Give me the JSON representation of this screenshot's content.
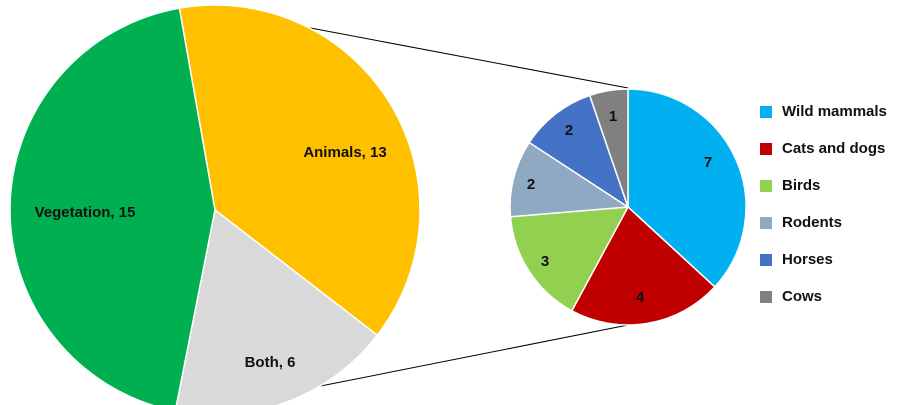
{
  "chart_data": [
    {
      "type": "pie",
      "slices": [
        {
          "label": "Animals",
          "value": 13,
          "color": "#FFC000"
        },
        {
          "label": "Both",
          "value": 6,
          "color": "#D9D9D9"
        },
        {
          "label": "Vegetation",
          "value": 15,
          "color": "#00B050"
        }
      ],
      "data_labels": [
        "Animals, 13",
        "Both, 6",
        "Vegetation, 15"
      ]
    },
    {
      "type": "pie",
      "slices": [
        {
          "label": "Wild mammals",
          "value": 7,
          "color": "#00B0F0"
        },
        {
          "label": "Cats and dogs",
          "value": 4,
          "color": "#C00000"
        },
        {
          "label": "Birds",
          "value": 3,
          "color": "#92D050"
        },
        {
          "label": "Rodents",
          "value": 2,
          "color": "#8EA9C1"
        },
        {
          "label": "Horses",
          "value": 2,
          "color": "#4472C4"
        },
        {
          "label": "Cows",
          "value": 1,
          "color": "#808080"
        }
      ],
      "data_labels": [
        "7",
        "4",
        "3",
        "2",
        "2",
        "1"
      ],
      "legend": {
        "position": "right",
        "items": [
          "Wild mammals",
          "Cats and dogs",
          "Birds",
          "Rodents",
          "Horses",
          "Cows"
        ]
      }
    }
  ]
}
